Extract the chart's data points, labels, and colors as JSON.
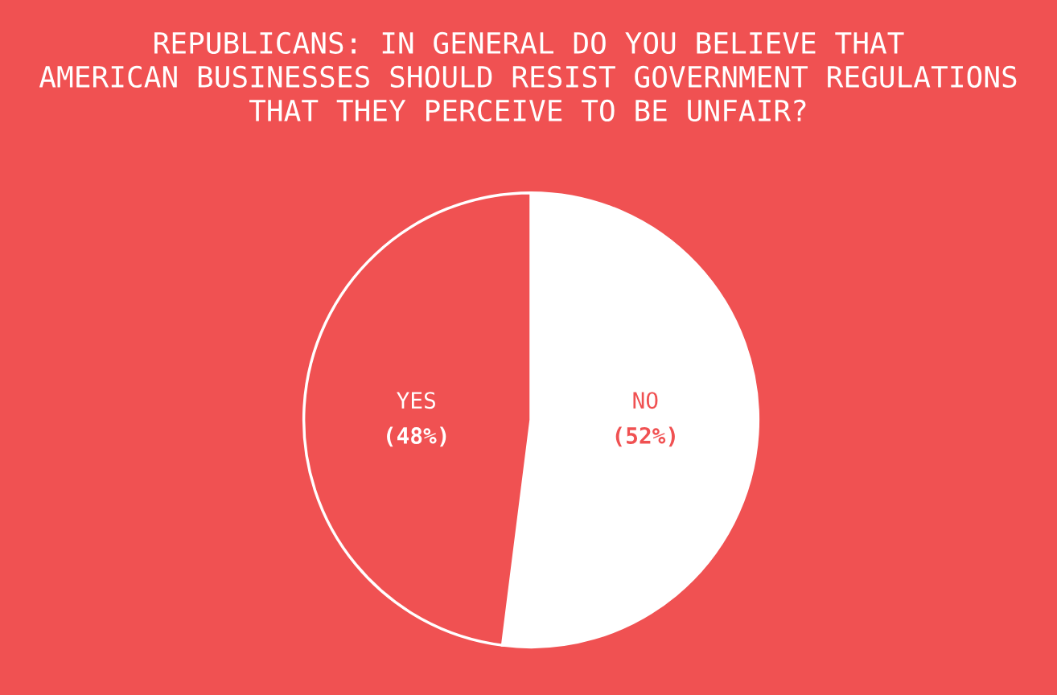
{
  "chart_data": {
    "type": "pie",
    "title": "REPUBLICANS: IN GENERAL DO YOU BELIEVE THAT\nAMERICAN BUSINESSES SHOULD RESIST GOVERNMENT REGULATIONS\nTHAT THEY PERCEIVE TO BE UNFAIR?",
    "categories": [
      "NO",
      "YES"
    ],
    "values": [
      52,
      48
    ],
    "colors": [
      "#ffffff",
      "#f05152"
    ],
    "value_labels": [
      "(52%)",
      "(48%)"
    ]
  }
}
